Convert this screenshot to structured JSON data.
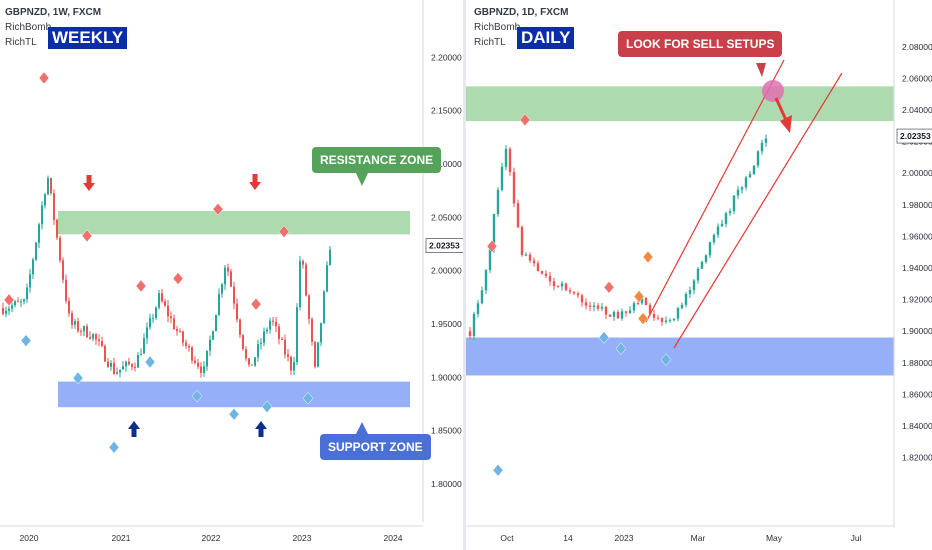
{
  "colors": {
    "up": "#26a69a",
    "down": "#ef5350",
    "resistance_zone": "#a5d6a7",
    "support_zone": "#8aa6f7",
    "resistance_label": "#55a35a",
    "support_label": "#4a6fd6",
    "sell_label": "#c9404a",
    "arrow_red": "#e53935",
    "arrow_navy": "#0d2d8e",
    "badge": "#0b2ea8"
  },
  "left": {
    "symbol": "GBPNZD, 1W, FXCM",
    "indicators": [
      "RichBomb",
      "RichTL"
    ],
    "badge": "WEEKLY",
    "price_label": "2.02353",
    "resistance_label": "RESISTANCE ZONE",
    "support_label": "SUPPORT ZONE",
    "icons": [
      "down-arrow-icon",
      "up-arrow-icon",
      "diamond-icon"
    ]
  },
  "right": {
    "symbol": "GBPNZD, 1D, FXCM",
    "indicators": [
      "RichBomb",
      "RichTL"
    ],
    "badge": "DAILY",
    "price_label": "2.02353",
    "sell_label": "LOOK FOR SELL SETUPS",
    "icons": [
      "circle-marker-icon",
      "down-arrow-icon",
      "diamond-icon"
    ]
  },
  "chart_data": [
    {
      "type": "candlestick",
      "title": "GBPNZD, 1W, FXCM",
      "ylim": [
        1.785,
        2.235
      ],
      "y_ticks": [
        "2.20000",
        "2.15000",
        "2.10000",
        "2.05000",
        "2.00000",
        "1.95000",
        "1.90000",
        "1.85000",
        "1.80000"
      ],
      "y_tick_values": [
        2.2,
        2.15,
        2.1,
        2.05,
        2.0,
        1.95,
        1.9,
        1.85,
        1.8
      ],
      "x_ticks": [
        "2020",
        "2021",
        "2022",
        "2023",
        "2024"
      ],
      "last_price": 2.02353,
      "resistance_zone": [
        2.034,
        2.056
      ],
      "support_zone": [
        1.872,
        1.896
      ],
      "key_closes": [
        {
          "date": "2019-09",
          "close": 1.965
        },
        {
          "date": "2019-12",
          "close": 1.97
        },
        {
          "date": "2020-03",
          "close": 2.09
        },
        {
          "date": "2020-06",
          "close": 1.95
        },
        {
          "date": "2020-09",
          "close": 1.94
        },
        {
          "date": "2020-12",
          "close": 1.905
        },
        {
          "date": "2021-03",
          "close": 1.915
        },
        {
          "date": "2021-06",
          "close": 1.975
        },
        {
          "date": "2021-09",
          "close": 1.935
        },
        {
          "date": "2021-12",
          "close": 1.905
        },
        {
          "date": "2022-03",
          "close": 2.01
        },
        {
          "date": "2022-06",
          "close": 1.905
        },
        {
          "date": "2022-09",
          "close": 1.955
        },
        {
          "date": "2022-12",
          "close": 1.905
        },
        {
          "date": "2023-01",
          "close": 2.02
        },
        {
          "date": "2023-03",
          "close": 1.905
        },
        {
          "date": "2023-05",
          "close": 2.024
        }
      ]
    },
    {
      "type": "candlestick",
      "title": "GBPNZD, 1D, FXCM",
      "ylim": [
        1.79,
        2.097
      ],
      "y_ticks": [
        "2.08000",
        "2.06000",
        "2.04000",
        "2.02000",
        "2.00000",
        "1.98000",
        "1.96000",
        "1.94000",
        "1.92000",
        "1.90000",
        "1.88000",
        "1.86000",
        "1.84000",
        "1.82000"
      ],
      "y_tick_values": [
        2.08,
        2.06,
        2.04,
        2.02,
        2.0,
        1.98,
        1.96,
        1.94,
        1.92,
        1.9,
        1.88,
        1.86,
        1.84,
        1.82
      ],
      "x_ticks": [
        "Oct",
        "14",
        "2023",
        "Mar",
        "May",
        "Jul"
      ],
      "last_price": 2.02353,
      "resistance_zone": [
        2.033,
        2.055
      ],
      "support_zone": [
        1.872,
        1.896
      ],
      "key_closes": [
        {
          "date": "2022-09-15",
          "close": 1.9
        },
        {
          "date": "2022-09-28",
          "close": 1.94
        },
        {
          "date": "2022-10-12",
          "close": 2.02
        },
        {
          "date": "2022-10-25",
          "close": 1.95
        },
        {
          "date": "2022-11-10",
          "close": 1.935
        },
        {
          "date": "2022-12-05",
          "close": 1.925
        },
        {
          "date": "2022-12-20",
          "close": 1.915
        },
        {
          "date": "2023-01-10",
          "close": 1.91
        },
        {
          "date": "2023-01-25",
          "close": 1.92
        },
        {
          "date": "2023-02-08",
          "close": 1.905
        },
        {
          "date": "2023-02-20",
          "close": 1.91
        },
        {
          "date": "2023-03-05",
          "close": 1.93
        },
        {
          "date": "2023-03-20",
          "close": 1.955
        },
        {
          "date": "2023-04-05",
          "close": 1.98
        },
        {
          "date": "2023-04-20",
          "close": 2.0
        },
        {
          "date": "2023-05-02",
          "close": 2.024
        }
      ]
    }
  ]
}
